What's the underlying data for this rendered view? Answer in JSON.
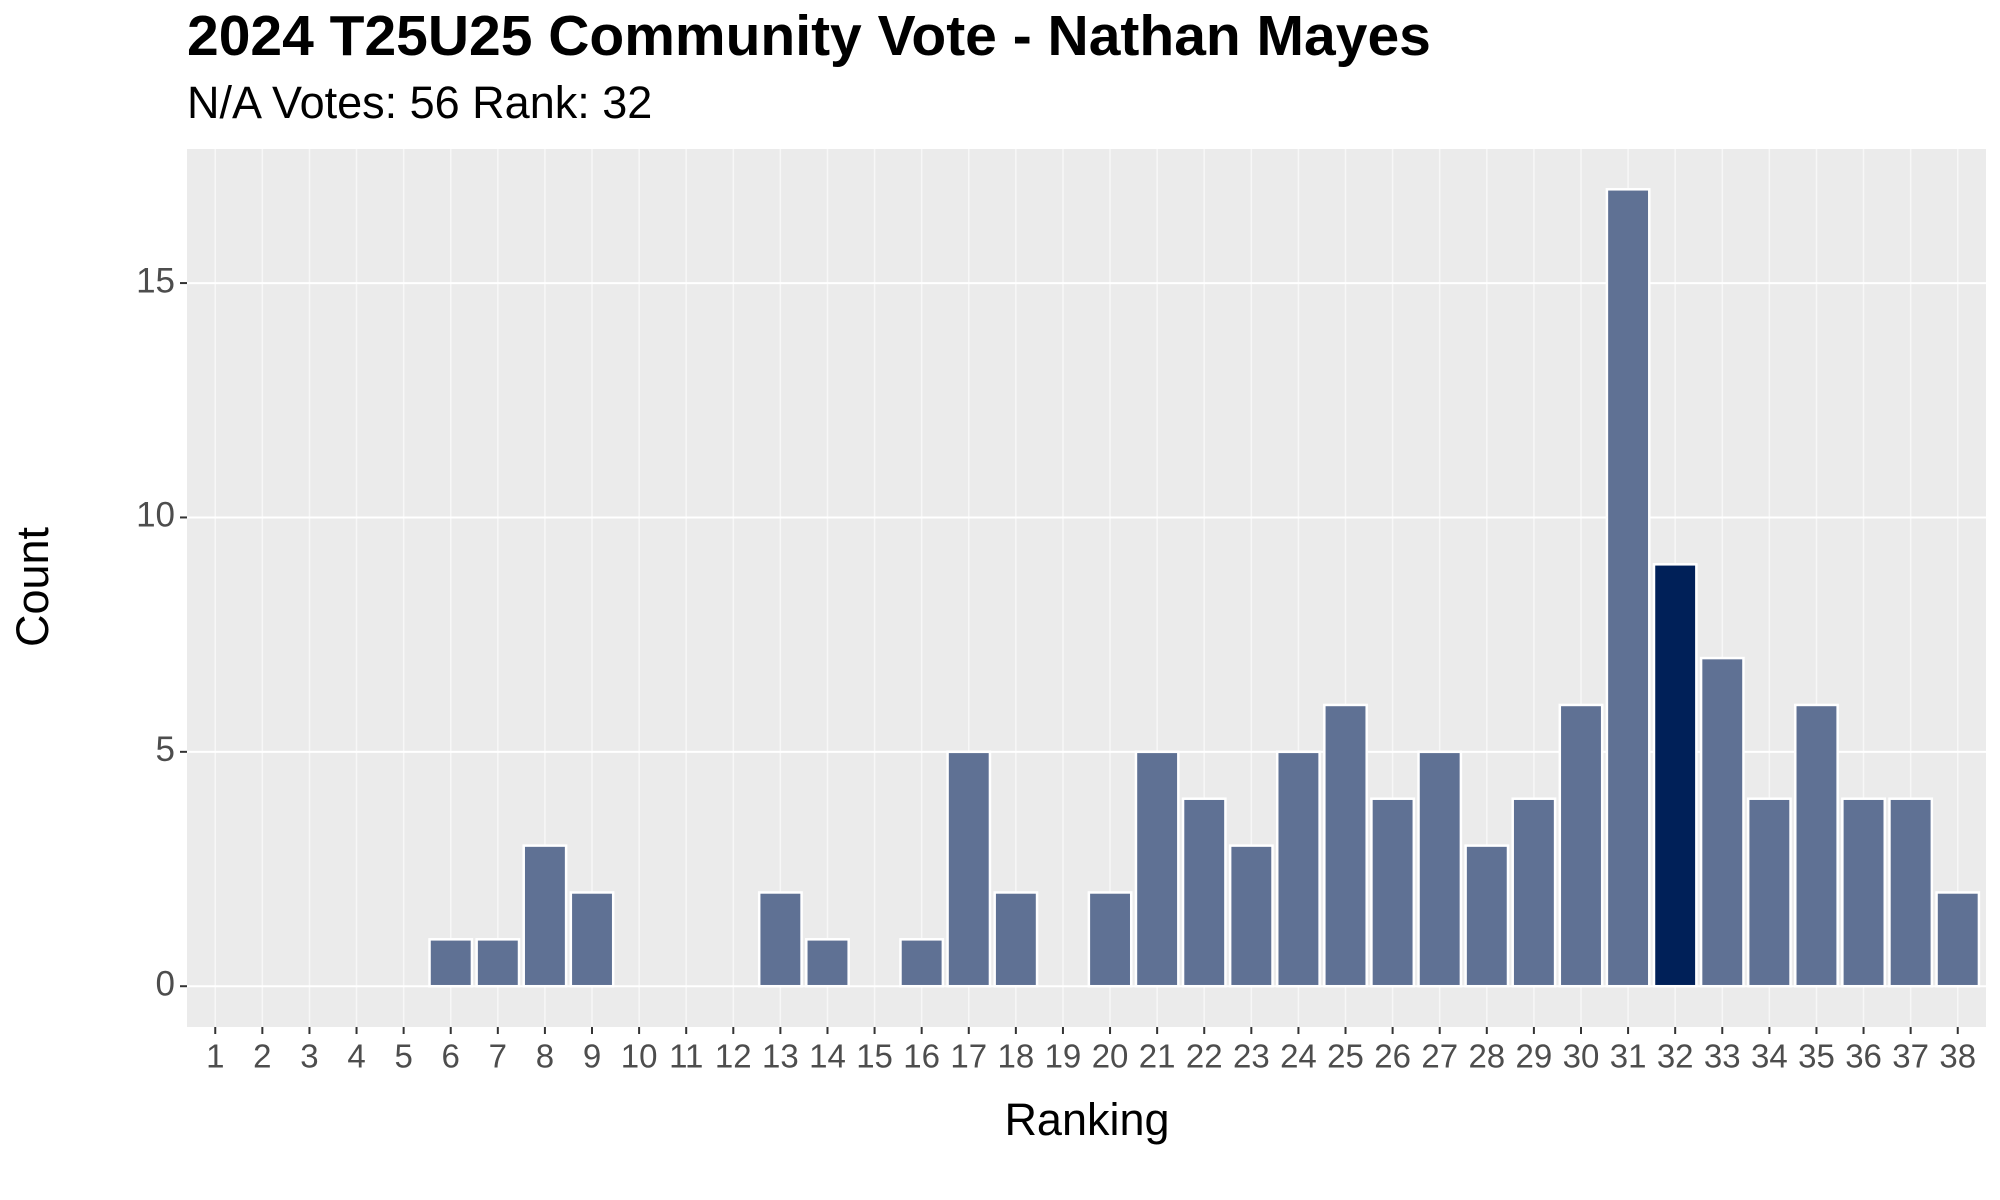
{
  "chart_data": {
    "type": "bar",
    "title": "2024 T25U25 Community Vote - Nathan Mayes",
    "subtitle": "N/A Votes: 56  Rank: 32",
    "x_label": "Ranking",
    "y_label": "Count",
    "categories": [
      "1",
      "2",
      "3",
      "4",
      "5",
      "6",
      "7",
      "8",
      "9",
      "10",
      "11",
      "12",
      "13",
      "14",
      "15",
      "16",
      "17",
      "18",
      "19",
      "20",
      "21",
      "22",
      "23",
      "24",
      "25",
      "26",
      "27",
      "28",
      "29",
      "30",
      "31",
      "32",
      "33",
      "34",
      "35",
      "36",
      "37",
      "38"
    ],
    "values": [
      0,
      0,
      0,
      0,
      0,
      1,
      1,
      3,
      2,
      0,
      0,
      0,
      2,
      1,
      0,
      1,
      5,
      2,
      0,
      2,
      5,
      4,
      3,
      5,
      6,
      4,
      5,
      3,
      4,
      6,
      17,
      9,
      7,
      4,
      6,
      4,
      4,
      2
    ],
    "colors": [
      "#5f7194",
      "#5f7194",
      "#5f7194",
      "#5f7194",
      "#5f7194",
      "#5f7194",
      "#5f7194",
      "#5f7194",
      "#5f7194",
      "#5f7194",
      "#5f7194",
      "#5f7194",
      "#5f7194",
      "#5f7194",
      "#5f7194",
      "#5f7194",
      "#5f7194",
      "#5f7194",
      "#5f7194",
      "#5f7194",
      "#5f7194",
      "#5f7194",
      "#5f7194",
      "#5f7194",
      "#5f7194",
      "#5f7194",
      "#5f7194",
      "#5f7194",
      "#5f7194",
      "#5f7194",
      "#5f7194",
      "#002058",
      "#5f7194",
      "#5f7194",
      "#5f7194",
      "#5f7194",
      "#5f7194",
      "#5f7194"
    ],
    "ylim": [
      -0.87,
      17.86
    ],
    "yticks": [
      0,
      5,
      10,
      15
    ],
    "grid": true
  }
}
